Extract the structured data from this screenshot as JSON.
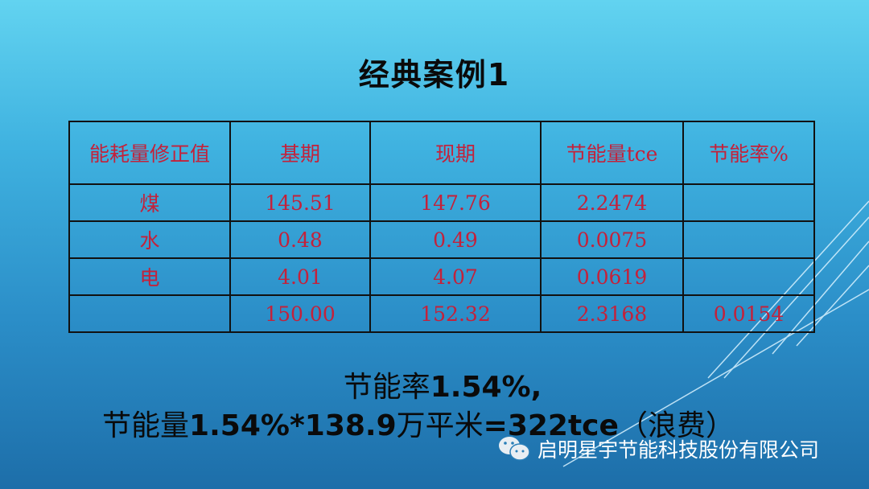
{
  "title": "经典案例1",
  "table": {
    "headers": [
      "能耗量修正值",
      "基期",
      "现期",
      "节能量tce",
      "节能率%"
    ],
    "rows": [
      [
        "煤",
        "145.51",
        "147.76",
        "2.2474",
        ""
      ],
      [
        "水",
        "0.48",
        "0.49",
        "0.0075",
        ""
      ],
      [
        "电",
        "4.01",
        "4.07",
        "0.0619",
        ""
      ],
      [
        "",
        "150.00",
        "152.32",
        "2.3168",
        "0.0154"
      ]
    ]
  },
  "summary": {
    "line1_prefix": "节能率",
    "line1_value": "1.54%,",
    "line2_prefix": "节能量",
    "line2_formula": "1.54%*138.9",
    "line2_unit": "万平米",
    "line2_result": "=322tce",
    "line2_note": "（浪费）"
  },
  "footer": {
    "icon": "wechat-icon",
    "text": "启明星宇节能科技股份有限公司"
  }
}
